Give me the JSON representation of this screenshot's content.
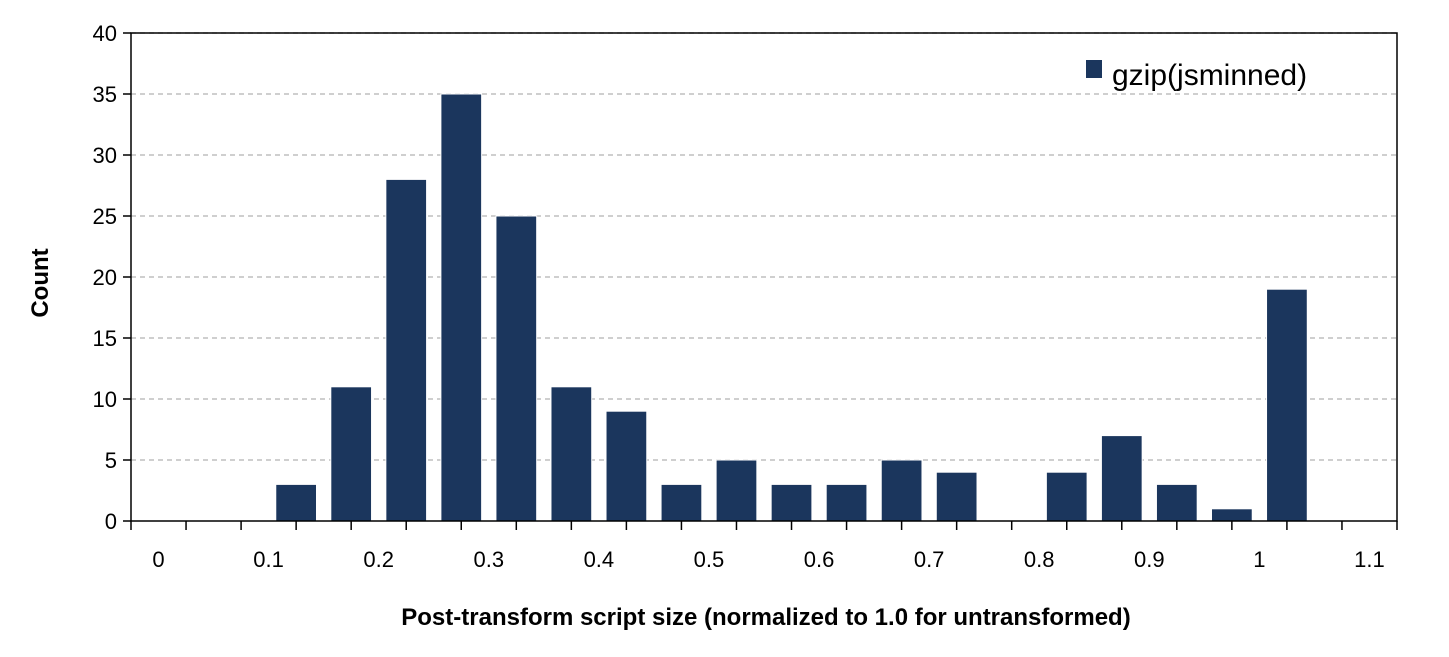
{
  "chart_data": {
    "type": "bar",
    "title": "",
    "xlabel": "Post-transform script size (normalized to 1.0 for untransformed)",
    "ylabel": "Count",
    "legend": {
      "position": "top-right",
      "entries": [
        "gzip(jsminned)"
      ]
    },
    "grid": "horizontal dashed",
    "x_tick_labels": [
      "0",
      "0.1",
      "0.2",
      "0.3",
      "0.4",
      "0.5",
      "0.6",
      "0.7",
      "0.8",
      "0.9",
      "1",
      "1.1"
    ],
    "y_tick_labels": [
      "0",
      "5",
      "10",
      "15",
      "20",
      "25",
      "30",
      "35",
      "40"
    ],
    "xlim": [
      0,
      1.1
    ],
    "ylim": [
      0,
      40
    ],
    "categories": [
      "0",
      "0.05",
      "0.1",
      "0.15",
      "0.2",
      "0.25",
      "0.3",
      "0.35",
      "0.4",
      "0.45",
      "0.5",
      "0.55",
      "0.6",
      "0.65",
      "0.7",
      "0.75",
      "0.8",
      "0.85",
      "0.9",
      "0.95",
      "1",
      "1.05"
    ],
    "series": [
      {
        "name": "gzip(jsminned)",
        "color": "#1b365d",
        "values": [
          0,
          0,
          3,
          11,
          28,
          35,
          25,
          11,
          9,
          3,
          5,
          3,
          3,
          5,
          4,
          0,
          4,
          7,
          3,
          1,
          19,
          0
        ]
      }
    ]
  }
}
